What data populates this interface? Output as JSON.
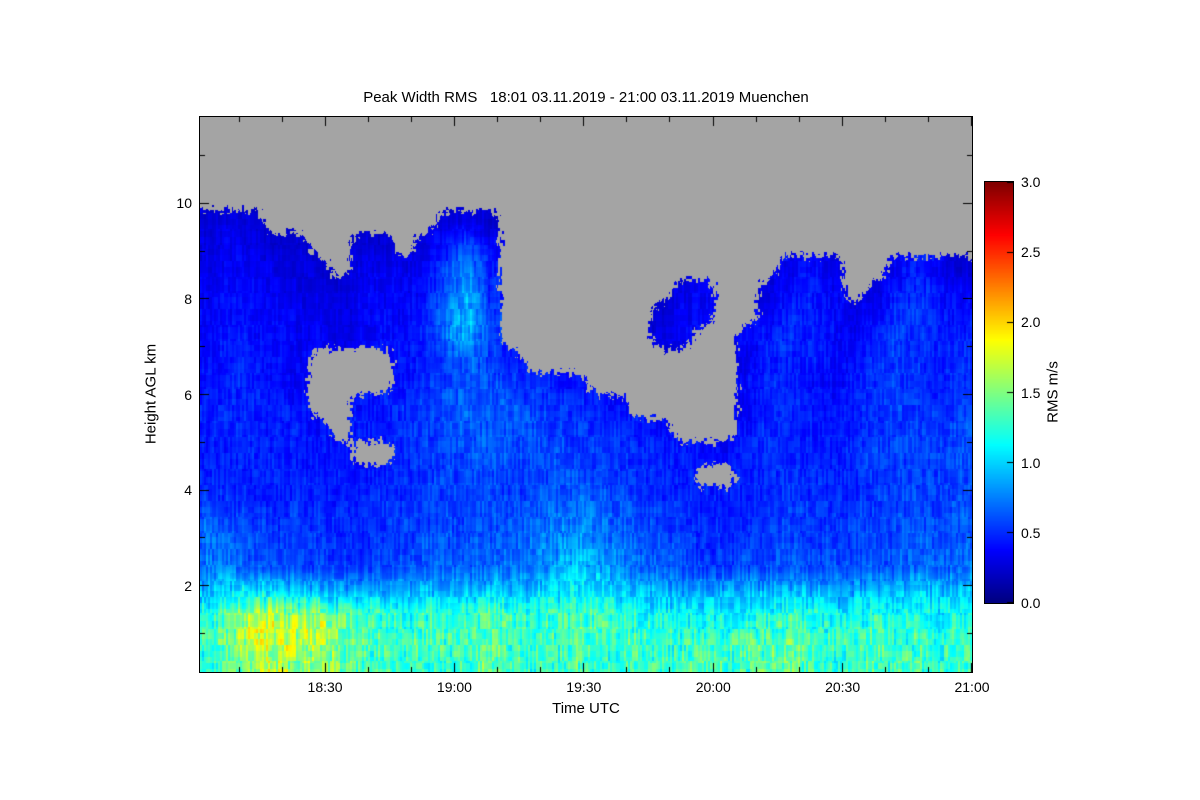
{
  "chart_data": {
    "type": "heatmap",
    "title": "Peak Width RMS   18:01 03.11.2019 - 21:00 03.11.2019 Muenchen",
    "xlabel": "Time UTC",
    "ylabel": "Height AGL km",
    "colorbar_label": "RMS m/s",
    "site": "Muenchen",
    "time_start": "18:01",
    "time_end": "21:00",
    "date": "03.11.2019",
    "x_start_minutes": 1081,
    "x_end_minutes": 1260,
    "x_minor_step_minutes": 10,
    "x_ticks": [
      {
        "minutes": 1110,
        "label": "18:30"
      },
      {
        "minutes": 1140,
        "label": "19:00"
      },
      {
        "minutes": 1170,
        "label": "19:30"
      },
      {
        "minutes": 1200,
        "label": "20:00"
      },
      {
        "minutes": 1230,
        "label": "20:30"
      },
      {
        "minutes": 1260,
        "label": "21:00"
      }
    ],
    "y_range_km": [
      0.2,
      11.8
    ],
    "y_ticks": [
      {
        "value_km": 2,
        "label": "2"
      },
      {
        "value_km": 4,
        "label": "4"
      },
      {
        "value_km": 6,
        "label": "6"
      },
      {
        "value_km": 8,
        "label": "8"
      },
      {
        "value_km": 10,
        "label": "10"
      }
    ],
    "colorbar_range": [
      0.0,
      3.0
    ],
    "colorbar_ticks": [
      {
        "value": 0.0,
        "label": "0.0"
      },
      {
        "value": 0.5,
        "label": "0.5"
      },
      {
        "value": 1.0,
        "label": "1.0"
      },
      {
        "value": 1.5,
        "label": "1.5"
      },
      {
        "value": 2.0,
        "label": "2.0"
      },
      {
        "value": 2.5,
        "label": "2.5"
      },
      {
        "value": 3.0,
        "label": "3.0"
      }
    ],
    "colormap": "jet",
    "no_data_color": "#a4a4a4",
    "background_color": "#ffffff",
    "grid": {
      "cols": 36,
      "rows": 24,
      "row0_is_top": true,
      "time_cell_minutes": 4.97,
      "height_cell_km": 0.483,
      "values_rms_ms": [
        [
          null,
          null,
          null,
          null,
          null,
          null,
          null,
          null,
          null,
          null,
          null,
          null,
          null,
          null,
          null,
          null,
          null,
          null,
          null,
          null,
          null,
          null,
          null,
          null,
          null,
          null,
          null,
          null,
          null,
          null,
          null,
          null,
          null,
          null,
          null,
          null
        ],
        [
          null,
          null,
          null,
          null,
          null,
          null,
          null,
          null,
          null,
          null,
          null,
          null,
          null,
          null,
          null,
          null,
          null,
          null,
          null,
          null,
          null,
          null,
          null,
          null,
          null,
          null,
          null,
          null,
          null,
          null,
          null,
          null,
          null,
          null,
          null,
          null
        ],
        [
          null,
          null,
          null,
          null,
          null,
          null,
          null,
          null,
          null,
          null,
          null,
          null,
          null,
          null,
          null,
          null,
          null,
          null,
          null,
          null,
          null,
          null,
          null,
          null,
          null,
          null,
          null,
          null,
          null,
          null,
          null,
          null,
          null,
          null,
          null,
          null
        ],
        [
          null,
          null,
          null,
          null,
          null,
          null,
          null,
          null,
          null,
          null,
          null,
          null,
          null,
          null,
          null,
          null,
          null,
          null,
          null,
          null,
          null,
          null,
          null,
          null,
          null,
          null,
          null,
          null,
          null,
          null,
          null,
          null,
          null,
          null,
          null,
          null
        ],
        [
          0.25,
          0.3,
          0.25,
          null,
          null,
          null,
          null,
          null,
          null,
          null,
          null,
          0.25,
          0.3,
          0.25,
          null,
          null,
          null,
          null,
          null,
          null,
          null,
          null,
          null,
          null,
          null,
          null,
          null,
          null,
          null,
          null,
          null,
          null,
          null,
          null,
          null,
          null
        ],
        [
          0.3,
          0.35,
          0.3,
          0.25,
          0.25,
          null,
          null,
          0.25,
          0.25,
          null,
          0.3,
          0.45,
          0.6,
          0.35,
          null,
          null,
          null,
          null,
          null,
          null,
          null,
          null,
          null,
          null,
          null,
          null,
          null,
          null,
          null,
          null,
          null,
          null,
          null,
          null,
          null,
          null
        ],
        [
          0.3,
          0.35,
          0.35,
          0.3,
          0.3,
          0.25,
          null,
          0.3,
          0.35,
          0.3,
          0.35,
          0.55,
          0.75,
          0.45,
          null,
          null,
          null,
          null,
          null,
          null,
          null,
          null,
          null,
          null,
          null,
          null,
          null,
          0.35,
          0.4,
          0.3,
          null,
          null,
          0.35,
          0.45,
          0.35,
          0.25
        ],
        [
          0.35,
          0.4,
          0.35,
          0.35,
          0.3,
          0.3,
          0.25,
          0.35,
          0.35,
          0.35,
          0.4,
          0.65,
          0.85,
          0.45,
          null,
          null,
          null,
          null,
          null,
          null,
          null,
          null,
          0.3,
          0.35,
          null,
          null,
          0.3,
          0.4,
          0.45,
          0.35,
          null,
          0.3,
          0.45,
          0.5,
          0.4,
          0.35
        ],
        [
          0.35,
          0.4,
          0.4,
          0.35,
          0.35,
          0.3,
          0.3,
          0.35,
          0.4,
          0.35,
          0.45,
          0.75,
          0.95,
          0.55,
          null,
          null,
          null,
          null,
          null,
          null,
          null,
          0.25,
          0.35,
          0.4,
          null,
          null,
          0.35,
          0.45,
          0.45,
          0.4,
          0.3,
          0.35,
          0.5,
          0.55,
          0.45,
          0.4
        ],
        [
          0.4,
          0.45,
          0.4,
          0.4,
          0.35,
          0.35,
          0.3,
          0.35,
          0.4,
          0.4,
          0.5,
          0.75,
          0.85,
          0.55,
          null,
          null,
          null,
          null,
          null,
          null,
          null,
          0.3,
          0.35,
          null,
          null,
          0.35,
          0.45,
          0.5,
          0.45,
          0.4,
          0.35,
          0.45,
          0.55,
          0.5,
          0.45,
          0.45
        ],
        [
          0.4,
          0.45,
          0.45,
          0.4,
          0.35,
          null,
          null,
          null,
          null,
          0.4,
          0.45,
          0.55,
          0.65,
          0.55,
          0.45,
          null,
          null,
          null,
          null,
          null,
          null,
          null,
          null,
          null,
          null,
          0.3,
          0.45,
          0.5,
          0.45,
          0.4,
          0.4,
          0.5,
          0.55,
          0.5,
          0.45,
          0.5
        ],
        [
          0.45,
          0.5,
          0.45,
          0.4,
          0.35,
          null,
          null,
          null,
          null,
          0.4,
          0.5,
          0.6,
          0.65,
          0.6,
          0.55,
          0.5,
          0.45,
          0.4,
          null,
          null,
          null,
          null,
          null,
          null,
          null,
          0.4,
          0.5,
          0.45,
          0.4,
          0.35,
          0.45,
          0.5,
          0.55,
          0.5,
          0.45,
          0.55
        ],
        [
          0.45,
          0.45,
          0.5,
          0.45,
          0.4,
          null,
          null,
          0.4,
          0.45,
          0.5,
          0.55,
          0.6,
          0.65,
          0.65,
          0.6,
          0.55,
          0.55,
          0.5,
          0.45,
          0.4,
          null,
          null,
          null,
          null,
          null,
          0.35,
          0.45,
          0.5,
          0.45,
          0.4,
          0.45,
          0.5,
          0.55,
          0.55,
          0.5,
          0.55
        ],
        [
          0.45,
          0.5,
          0.45,
          0.45,
          0.45,
          0.4,
          null,
          0.45,
          0.45,
          0.5,
          0.55,
          0.6,
          0.65,
          0.65,
          0.6,
          0.6,
          0.55,
          0.55,
          0.5,
          0.5,
          0.45,
          0.4,
          null,
          null,
          null,
          0.4,
          0.5,
          0.45,
          0.45,
          0.4,
          0.45,
          0.5,
          0.55,
          0.55,
          0.5,
          0.6
        ],
        [
          0.45,
          0.45,
          0.5,
          0.45,
          0.45,
          0.45,
          0.4,
          null,
          null,
          0.5,
          0.55,
          0.55,
          0.6,
          0.65,
          0.6,
          0.55,
          0.6,
          0.55,
          0.55,
          0.5,
          0.5,
          0.45,
          0.45,
          0.4,
          0.35,
          0.45,
          0.5,
          0.5,
          0.45,
          0.45,
          0.5,
          0.55,
          0.55,
          0.55,
          0.55,
          0.6
        ],
        [
          0.5,
          0.45,
          0.45,
          0.45,
          0.45,
          0.45,
          0.45,
          0.4,
          0.45,
          0.5,
          0.55,
          0.55,
          0.55,
          0.6,
          0.55,
          0.55,
          0.6,
          0.6,
          0.55,
          0.55,
          0.5,
          0.5,
          0.45,
          null,
          null,
          0.45,
          0.5,
          0.5,
          0.5,
          0.45,
          0.5,
          0.55,
          0.55,
          0.55,
          0.55,
          0.6
        ],
        [
          0.55,
          0.5,
          0.45,
          0.45,
          0.5,
          0.45,
          0.45,
          0.45,
          0.5,
          0.5,
          0.55,
          0.55,
          0.55,
          0.6,
          0.55,
          0.6,
          0.65,
          0.7,
          0.65,
          0.6,
          0.55,
          0.5,
          0.5,
          0.45,
          0.45,
          0.5,
          0.5,
          0.55,
          0.5,
          0.5,
          0.5,
          0.55,
          0.55,
          0.6,
          0.55,
          0.6
        ],
        [
          0.65,
          0.6,
          0.55,
          0.5,
          0.55,
          0.5,
          0.5,
          0.45,
          0.5,
          0.55,
          0.55,
          0.6,
          0.55,
          0.6,
          0.6,
          0.65,
          0.7,
          0.75,
          0.7,
          0.65,
          0.6,
          0.55,
          0.5,
          0.5,
          0.45,
          0.5,
          0.55,
          0.55,
          0.55,
          0.5,
          0.55,
          0.55,
          0.6,
          0.6,
          0.55,
          0.65
        ],
        [
          0.7,
          0.65,
          0.6,
          0.55,
          0.55,
          0.55,
          0.5,
          0.5,
          0.55,
          0.55,
          0.6,
          0.6,
          0.6,
          0.65,
          0.65,
          0.7,
          0.75,
          0.85,
          0.8,
          0.7,
          0.65,
          0.6,
          0.55,
          0.5,
          0.5,
          0.55,
          0.55,
          0.6,
          0.55,
          0.55,
          0.55,
          0.6,
          0.6,
          0.65,
          0.6,
          0.65
        ],
        [
          0.75,
          0.7,
          0.65,
          0.6,
          0.6,
          0.55,
          0.55,
          0.55,
          0.6,
          0.6,
          0.65,
          0.65,
          0.65,
          0.7,
          0.7,
          0.75,
          0.85,
          0.95,
          0.9,
          0.8,
          0.7,
          0.65,
          0.6,
          0.55,
          0.55,
          0.6,
          0.6,
          0.65,
          0.6,
          0.6,
          0.6,
          0.65,
          0.65,
          0.7,
          0.65,
          0.7
        ],
        [
          0.95,
          1.05,
          1.15,
          1.05,
          0.95,
          0.95,
          0.9,
          0.85,
          0.85,
          0.9,
          0.95,
          0.95,
          0.95,
          1.0,
          0.95,
          1.0,
          1.05,
          1.15,
          1.1,
          1.0,
          0.95,
          0.9,
          0.85,
          0.85,
          0.85,
          0.9,
          0.9,
          0.95,
          0.9,
          0.85,
          0.9,
          0.95,
          0.95,
          1.0,
          0.95,
          0.95
        ],
        [
          1.2,
          1.4,
          1.6,
          1.7,
          1.5,
          1.6,
          1.4,
          1.3,
          1.3,
          1.2,
          1.3,
          1.2,
          1.3,
          1.4,
          1.3,
          1.25,
          1.3,
          1.35,
          1.3,
          1.25,
          1.2,
          1.15,
          1.1,
          1.15,
          1.1,
          1.15,
          1.2,
          1.25,
          1.2,
          1.1,
          1.15,
          1.2,
          1.15,
          1.2,
          1.1,
          1.15
        ],
        [
          1.3,
          1.5,
          1.7,
          1.8,
          1.6,
          1.7,
          1.5,
          1.4,
          1.35,
          1.3,
          1.35,
          1.3,
          1.4,
          1.45,
          1.35,
          1.3,
          1.35,
          1.4,
          1.35,
          1.3,
          1.35,
          1.3,
          1.25,
          1.3,
          1.25,
          1.3,
          1.35,
          1.4,
          1.3,
          1.2,
          1.3,
          1.35,
          1.25,
          1.3,
          1.2,
          1.25
        ],
        [
          1.2,
          1.4,
          1.6,
          1.7,
          1.5,
          1.6,
          1.45,
          1.35,
          1.3,
          1.25,
          1.3,
          1.25,
          1.35,
          1.4,
          1.3,
          1.25,
          1.3,
          1.35,
          1.3,
          1.25,
          1.3,
          1.35,
          1.3,
          1.35,
          1.3,
          1.35,
          1.4,
          1.45,
          1.35,
          1.25,
          1.3,
          1.35,
          1.3,
          1.35,
          1.25,
          1.3
        ]
      ]
    }
  }
}
